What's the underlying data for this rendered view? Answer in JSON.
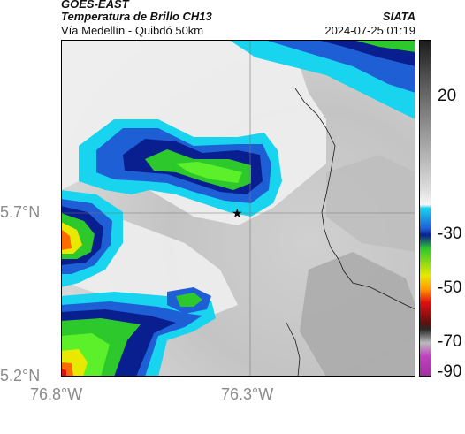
{
  "header": {
    "satellite": "GOES-EAST",
    "product": "Temperatura de Brillo CH13",
    "area": "Vía Medellín - Quibdó 50km",
    "organization": "SIATA",
    "timestamp": "2024-07-25 01:19"
  },
  "map": {
    "lat_labels": [
      "5.7°N",
      "5.2°N"
    ],
    "lon_labels": [
      "76.8°W",
      "76.3°W"
    ],
    "marker": "star-marker",
    "palette": {
      "warm_gray_light": "#e6e6e6",
      "warm_gray": "#b8b8b8",
      "cloud_white": "#ffffff",
      "cyan": "#18d4ee",
      "blue": "#1f5fd6",
      "navy": "#0a1f8f",
      "green": "#2cc82c",
      "bright_green": "#5cf02a",
      "yellow": "#e8e800",
      "orange": "#ff6a00",
      "red": "#e01010"
    }
  },
  "colorbar": {
    "ticks": [
      "20",
      "-30",
      "-50",
      "-70",
      "-90"
    ]
  }
}
